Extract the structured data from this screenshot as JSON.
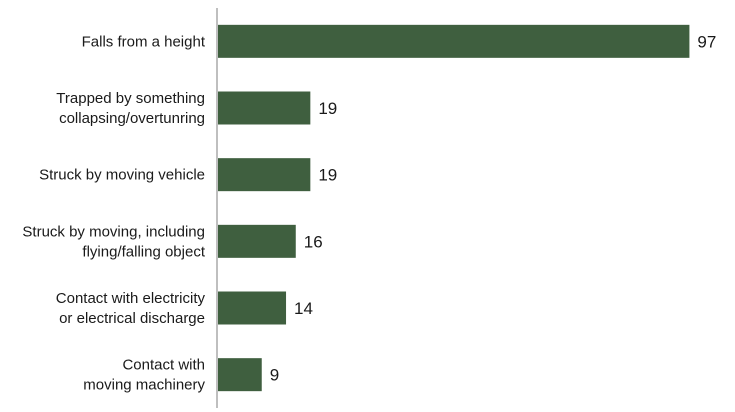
{
  "chart_data": {
    "type": "bar",
    "orientation": "horizontal",
    "categories": [
      "Falls from a height",
      "Trapped by something collapsing/overtunring",
      "Struck by moving vehicle",
      "Struck by moving, including flying/falling object",
      "Contact with electricity or electrical discharge",
      "Contact with moving machinery"
    ],
    "category_lines": [
      [
        "Falls from a height"
      ],
      [
        "Trapped by something",
        "collapsing/overtunring"
      ],
      [
        "Struck by moving vehicle"
      ],
      [
        "Struck by moving, including",
        "flying/falling object"
      ],
      [
        "Contact with electricity",
        "or electrical discharge"
      ],
      [
        "Contact with",
        "moving machinery"
      ]
    ],
    "values": [
      97,
      19,
      19,
      16,
      14,
      9
    ],
    "title": "",
    "xlabel": "",
    "ylabel": "",
    "xlim": [
      0,
      100
    ],
    "grid": false,
    "legend": "none",
    "data_labels": true,
    "bar_color": "#3f5f3f"
  }
}
